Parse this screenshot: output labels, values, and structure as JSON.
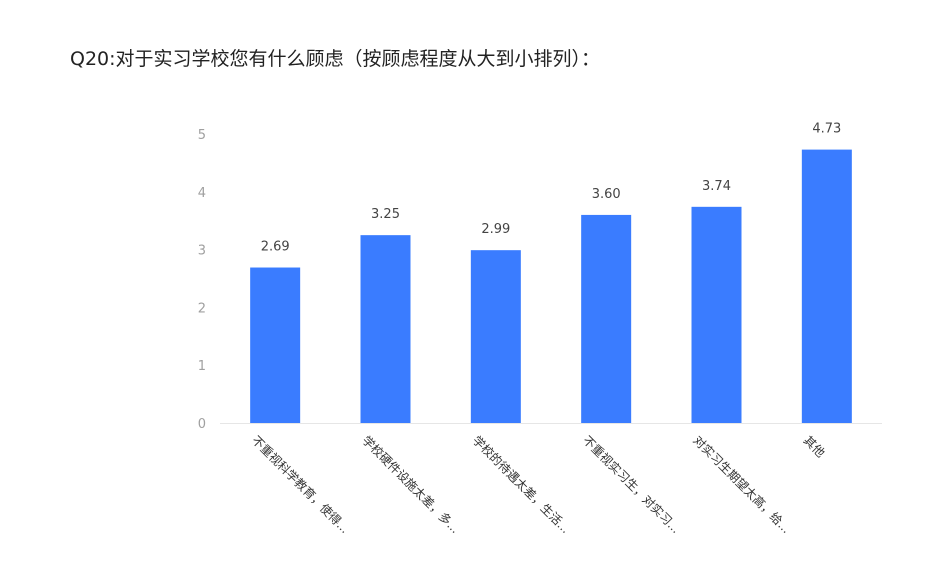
{
  "title": "Q20:对于实习学校您有什么顾虑（按顾虑程度从大到小排列）：",
  "chart_data": {
    "type": "bar",
    "categories": [
      "不重视科学教育，使得...",
      "学校硬件设施太差，多...",
      "学校的待遇太差，生活...",
      "不重视实习生，对实习...",
      "对实习生期望太高，给...",
      "其他"
    ],
    "values": [
      2.69,
      3.25,
      2.99,
      3.6,
      3.74,
      4.73
    ],
    "value_labels": [
      "2.69",
      "3.25",
      "2.99",
      "3.60",
      "3.74",
      "4.73"
    ],
    "y_ticks": [
      "0",
      "1",
      "2",
      "3",
      "4",
      "5"
    ],
    "ylim": [
      0,
      5
    ],
    "bar_color": "#3a7cff",
    "xlabel": "",
    "ylabel": "",
    "grid": false
  }
}
